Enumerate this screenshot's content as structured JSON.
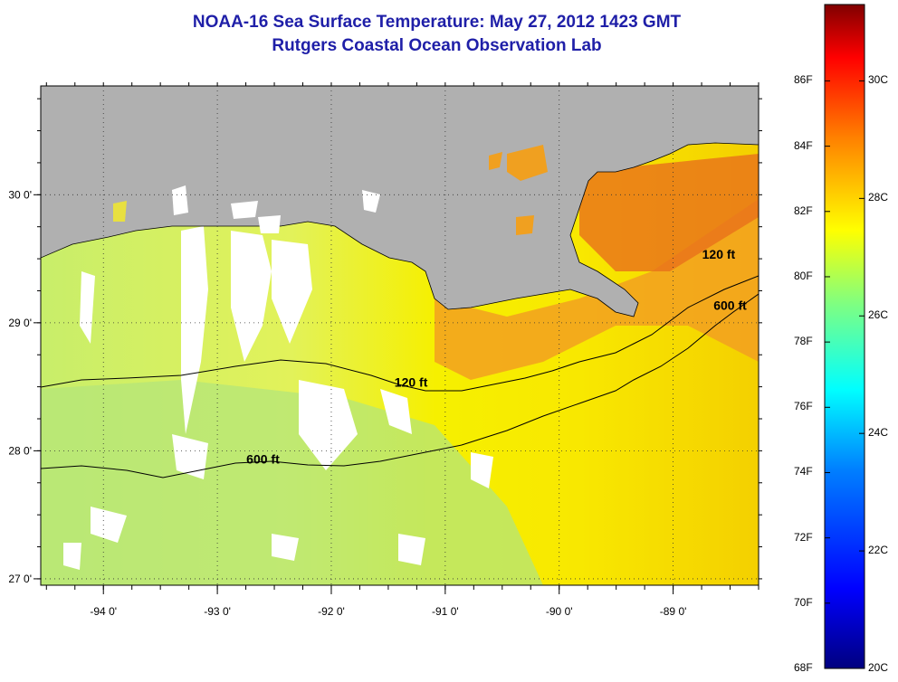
{
  "title": "NOAA-16 Sea Surface Temperature:  May 27, 2012 1423 GMT",
  "subtitle": "Rutgers Coastal Ocean Observation Lab",
  "colors": {
    "land": "#b0b0b0",
    "cloud": "#ffffff",
    "contour": "#000000",
    "title_text": "#1f1fa8"
  },
  "map": {
    "lon_range": [
      -94.55,
      -88.25
    ],
    "lat_range": [
      26.95,
      30.85
    ],
    "lon_ticks": [
      "-94 0'",
      "-93 0'",
      "-92 0'",
      "-91 0'",
      "-90 0'",
      "-89 0'"
    ],
    "lat_ticks": [
      "30 0'",
      "29 0'",
      "28 0'",
      "27 0'"
    ],
    "contour_labels": [
      {
        "text": "120 ft",
        "lon": -91.3,
        "lat": 28.5
      },
      {
        "text": "600 ft",
        "lon": -92.6,
        "lat": 27.9
      },
      {
        "text": "120 ft",
        "lon": -88.6,
        "lat": 29.5
      },
      {
        "text": "600 ft",
        "lon": -88.5,
        "lat": 29.1
      }
    ],
    "grid": "dotted"
  },
  "colorbar": {
    "f_labels": [
      "86F",
      "84F",
      "82F",
      "80F",
      "78F",
      "76F",
      "74F",
      "72F",
      "70F",
      "68F"
    ],
    "c_labels": [
      "30C",
      "28C",
      "26C",
      "24C",
      "22C",
      "20C"
    ],
    "range_c": [
      20,
      31.3
    ],
    "stops": [
      "#00007f",
      "#0000ff",
      "#0080ff",
      "#00ffff",
      "#80ff80",
      "#ffff00",
      "#ff8000",
      "#ff0000",
      "#800000"
    ]
  }
}
